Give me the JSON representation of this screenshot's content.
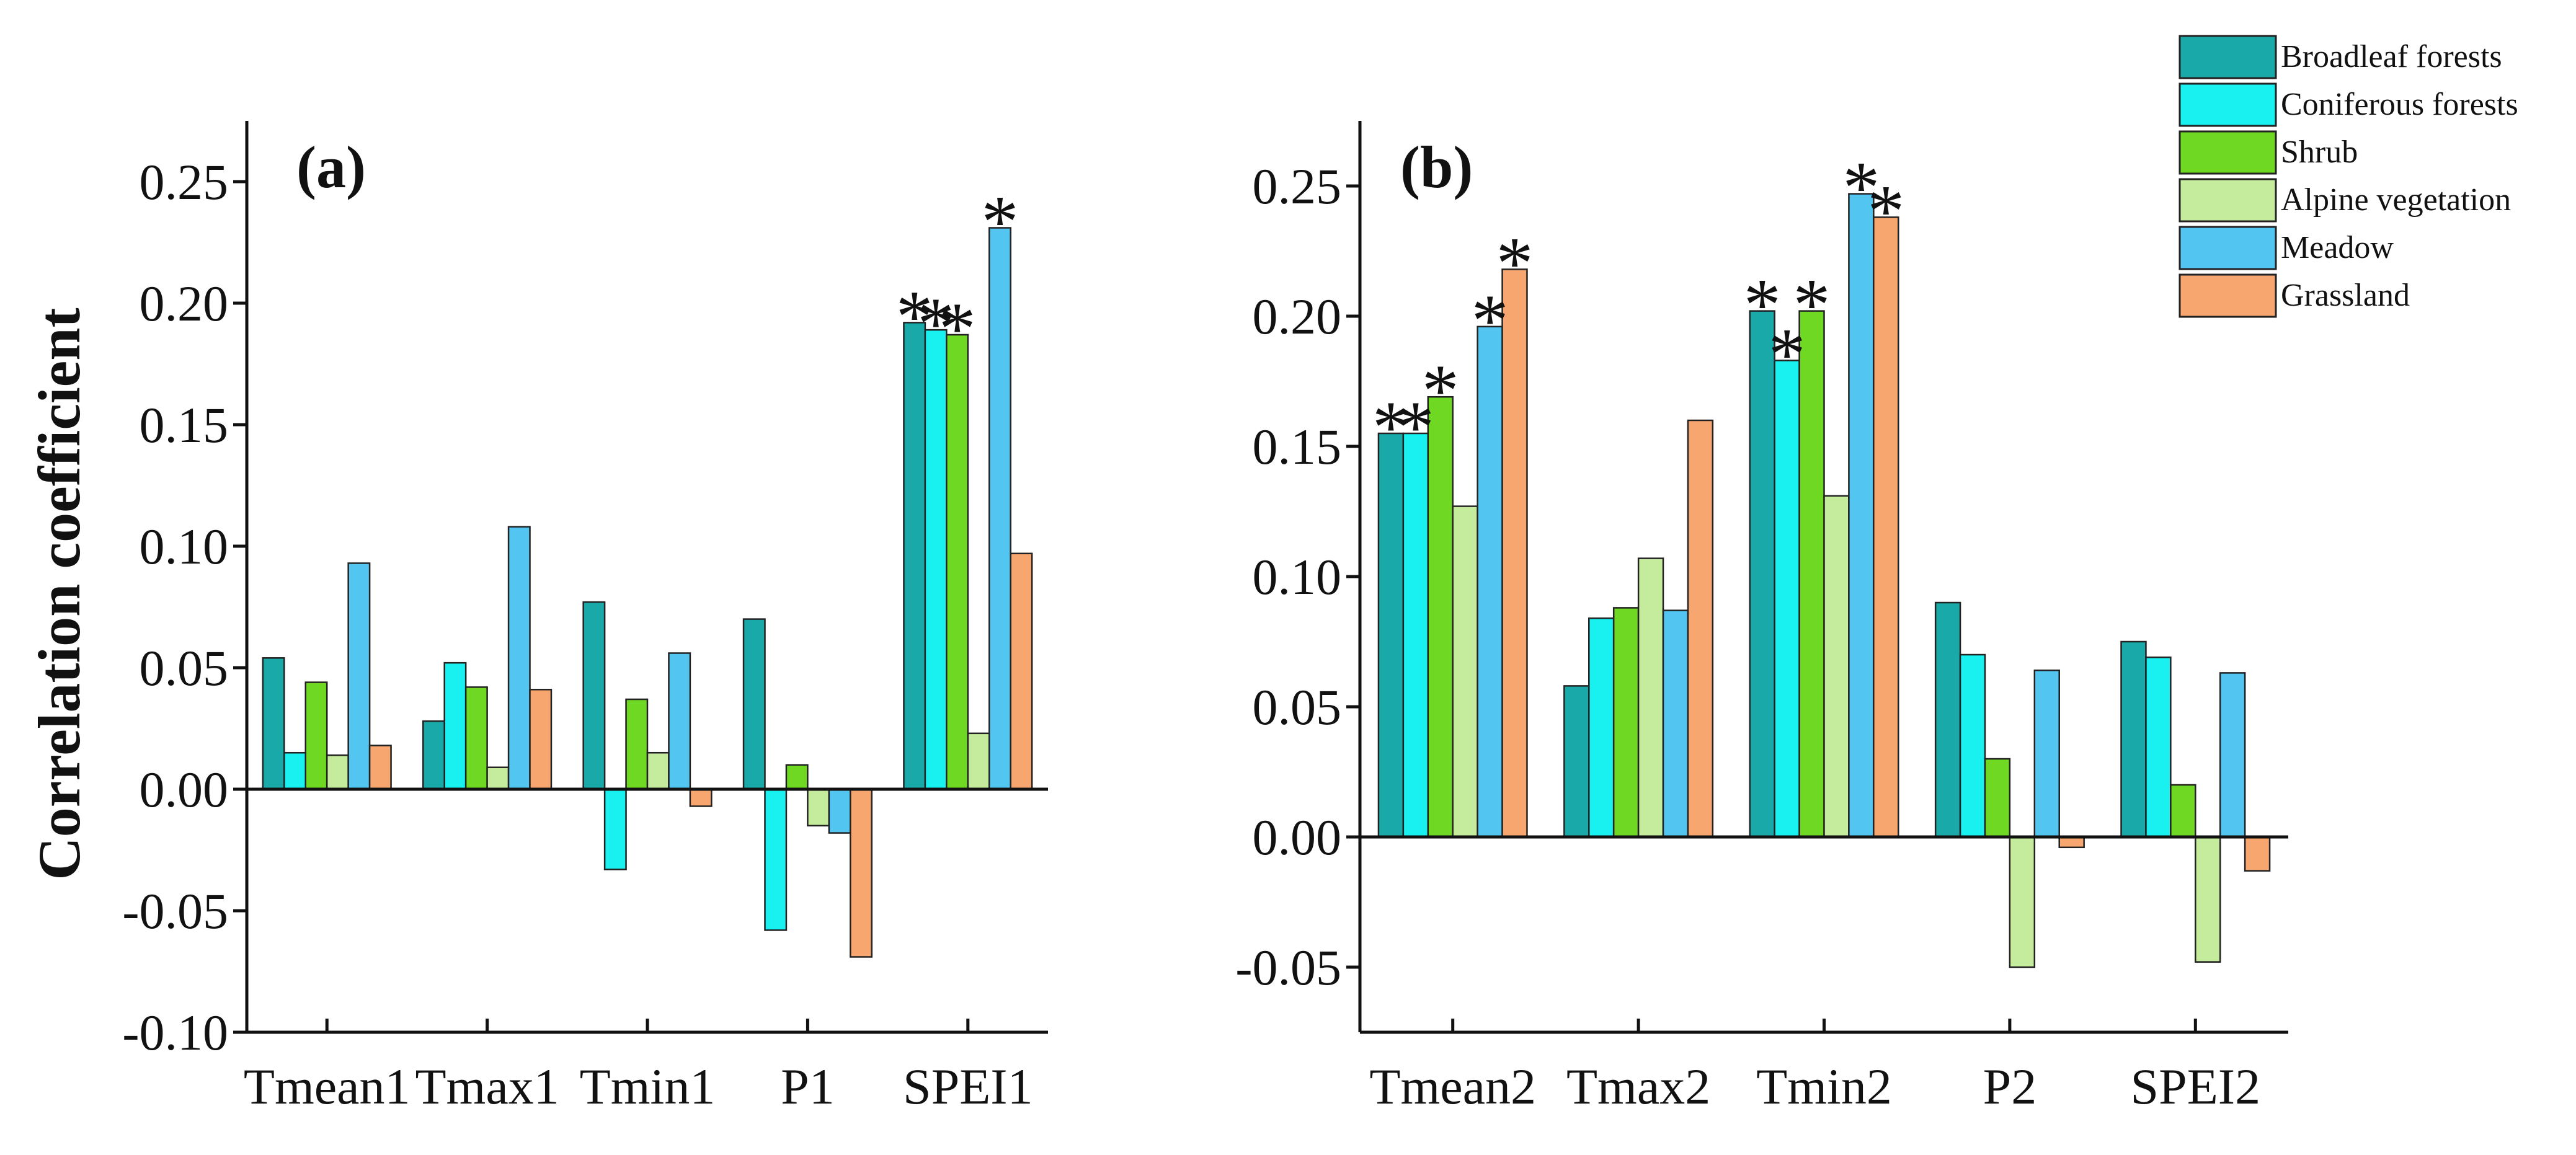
{
  "chart_data": [
    {
      "type": "bar",
      "panel_label": "(a)",
      "ylabel": "Correlation coefficient",
      "ylim": [
        -0.1,
        0.275
      ],
      "yticks": [
        -0.1,
        -0.05,
        0.0,
        0.05,
        0.1,
        0.15,
        0.2,
        0.25
      ],
      "ytick_labels": [
        "-0.10",
        "-0.05",
        "0.00",
        "0.05",
        "0.10",
        "0.15",
        "0.20",
        "0.25"
      ],
      "categories": [
        "Tmean1",
        "Tmax1",
        "Tmin1",
        "P1",
        "SPEI1"
      ],
      "series": [
        {
          "name": "Broadleaf forests",
          "values": [
            0.054,
            0.028,
            0.077,
            0.07,
            0.192
          ]
        },
        {
          "name": "Coniferous forests",
          "values": [
            0.015,
            0.052,
            -0.033,
            -0.058,
            0.189
          ]
        },
        {
          "name": "Shrub",
          "values": [
            0.044,
            0.042,
            0.037,
            0.01,
            0.187
          ]
        },
        {
          "name": "Alpine vegetation",
          "values": [
            0.014,
            0.009,
            0.015,
            -0.015,
            0.023
          ]
        },
        {
          "name": "Meadow",
          "values": [
            0.093,
            0.108,
            0.056,
            -0.018,
            0.231
          ]
        },
        {
          "name": "Grassland",
          "values": [
            0.018,
            0.041,
            -0.007,
            -0.069,
            0.097
          ]
        }
      ],
      "significance_marker": "*",
      "significance": [
        {
          "category": "SPEI1",
          "series": "Broadleaf forests"
        },
        {
          "category": "SPEI1",
          "series": "Coniferous forests"
        },
        {
          "category": "SPEI1",
          "series": "Shrub"
        },
        {
          "category": "SPEI1",
          "series": "Meadow"
        }
      ]
    },
    {
      "type": "bar",
      "panel_label": "(b)",
      "ylim": [
        -0.075,
        0.275
      ],
      "yticks": [
        -0.05,
        0.0,
        0.05,
        0.1,
        0.15,
        0.2,
        0.25
      ],
      "ytick_labels": [
        "-0.05",
        "0.00",
        "0.05",
        "0.10",
        "0.15",
        "0.20",
        "0.25"
      ],
      "categories": [
        "Tmean2",
        "Tmax2",
        "Tmin2",
        "P2",
        "SPEI2"
      ],
      "series": [
        {
          "name": "Broadleaf forests",
          "values": [
            0.155,
            0.058,
            0.202,
            0.09,
            0.075
          ]
        },
        {
          "name": "Coniferous forests",
          "values": [
            0.155,
            0.084,
            0.183,
            0.07,
            0.069
          ]
        },
        {
          "name": "Shrub",
          "values": [
            0.169,
            0.088,
            0.202,
            0.03,
            0.02
          ]
        },
        {
          "name": "Alpine vegetation",
          "values": [
            0.127,
            0.107,
            0.131,
            -0.05,
            -0.048
          ]
        },
        {
          "name": "Meadow",
          "values": [
            0.196,
            0.087,
            0.247,
            0.064,
            0.063
          ]
        },
        {
          "name": "Grassland",
          "values": [
            0.218,
            0.16,
            0.238,
            -0.004,
            -0.013
          ]
        }
      ],
      "significance_marker": "*",
      "significance": [
        {
          "category": "Tmean2",
          "series": "Broadleaf forests"
        },
        {
          "category": "Tmean2",
          "series": "Coniferous forests"
        },
        {
          "category": "Tmean2",
          "series": "Shrub"
        },
        {
          "category": "Tmean2",
          "series": "Meadow"
        },
        {
          "category": "Tmean2",
          "series": "Grassland"
        },
        {
          "category": "Tmin2",
          "series": "Broadleaf forests"
        },
        {
          "category": "Tmin2",
          "series": "Coniferous forests"
        },
        {
          "category": "Tmin2",
          "series": "Shrub"
        },
        {
          "category": "Tmin2",
          "series": "Meadow"
        },
        {
          "category": "Tmin2",
          "series": "Grassland"
        }
      ]
    }
  ],
  "legend": {
    "placement": "top-right",
    "items": [
      {
        "name": "Broadleaf forests",
        "color": "#1aa9a9"
      },
      {
        "name": "Coniferous forests",
        "color": "#19f0f0"
      },
      {
        "name": "Shrub",
        "color": "#6fd822"
      },
      {
        "name": "Alpine vegetation",
        "color": "#c5ec9c"
      },
      {
        "name": "Meadow",
        "color": "#52c6f0"
      },
      {
        "name": "Grassland",
        "color": "#f7a670"
      }
    ]
  }
}
